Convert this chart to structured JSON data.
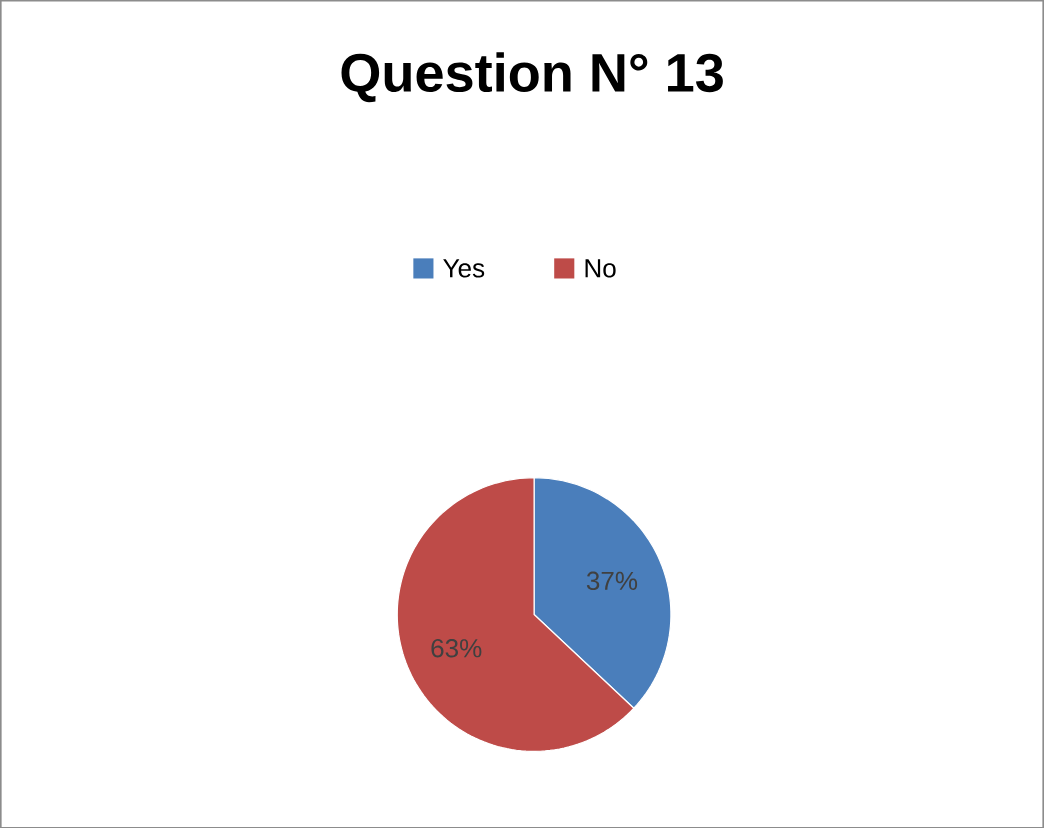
{
  "chart_data": {
    "type": "pie",
    "title": "Question N° 13",
    "categories": [
      "Yes",
      "No"
    ],
    "values": [
      37,
      63
    ],
    "colors": [
      "#4a7ebb",
      "#be4b48"
    ],
    "value_labels": [
      "37%",
      "63%"
    ],
    "legend": "top"
  }
}
